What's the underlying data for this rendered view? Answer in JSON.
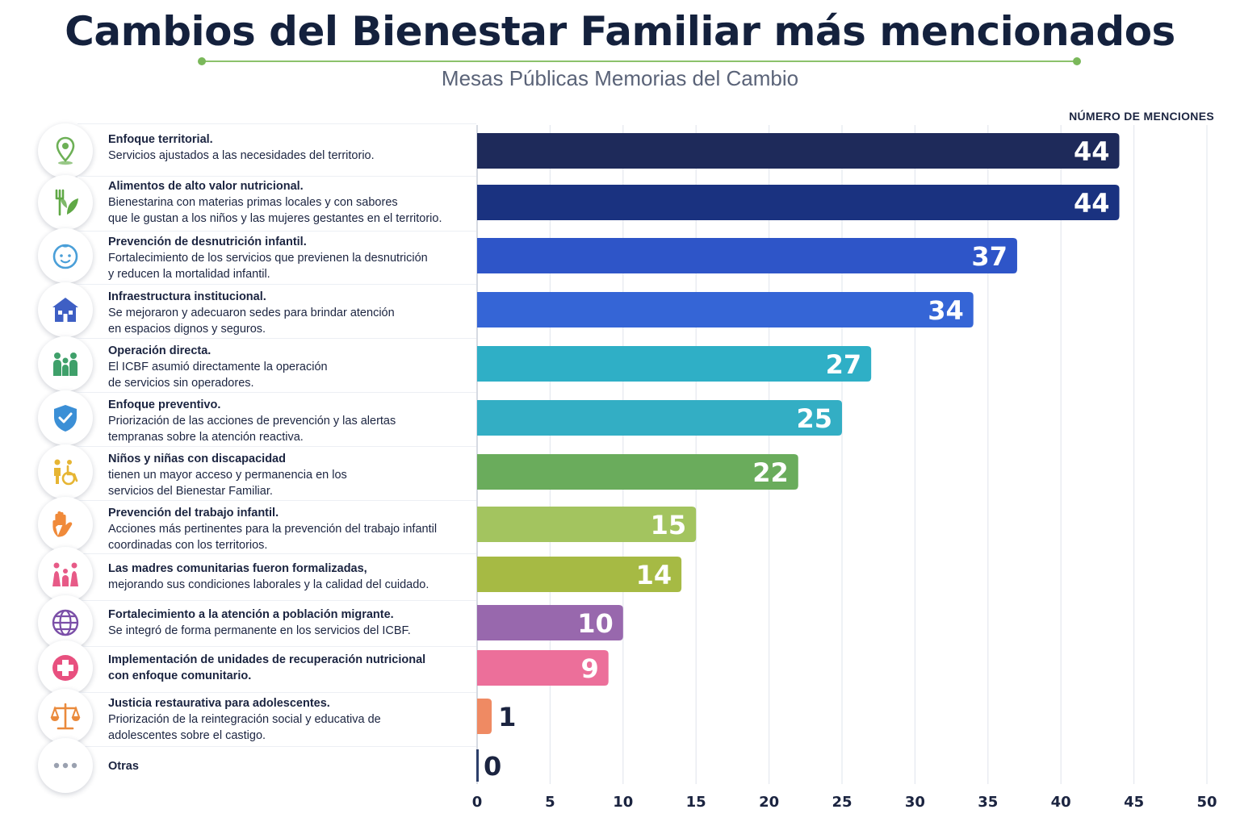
{
  "header": {
    "title": "Cambios del Bienestar Familiar más mencionados",
    "subtitle": "Mesas Públicas Memorias del Cambio"
  },
  "colors": {
    "title": "#14213d",
    "accent_rule": "#8cc26b"
  },
  "chart_data": {
    "type": "bar",
    "orientation": "horizontal",
    "title": "Cambios del Bienestar Familiar más mencionados",
    "subtitle": "Mesas Públicas Memorias del Cambio",
    "xlabel": "NÚMERO DE MENCIONES",
    "xlim": [
      0,
      50
    ],
    "xticks": [
      0,
      5,
      10,
      15,
      20,
      25,
      30,
      35,
      40,
      45,
      50
    ],
    "grid": true,
    "legend": "none",
    "categories": [
      "Enfoque territorial.",
      "Alimentos de alto valor nutricional.",
      "Prevención de desnutrición infantil.",
      "Infraestructura institucional.",
      "Operación directa.",
      "Enfoque preventivo.",
      "Niños y niñas con discapacidad",
      "Prevención del trabajo infantil.",
      "Las madres comunitarias fueron formalizadas,",
      "Fortalecimiento a la atención a población migrante.",
      "Implementación de unidades de recuperación nutricional con enfoque comunitario.",
      "Justicia restaurativa para adolescentes.",
      "Otras"
    ],
    "values": [
      44,
      44,
      37,
      34,
      27,
      25,
      22,
      15,
      14,
      10,
      9,
      1,
      0
    ],
    "bar_colors": [
      "#1e2a5a",
      "#1a3280",
      "#2e55c8",
      "#3565d6",
      "#2fafc6",
      "#33aec4",
      "#6aac5c",
      "#a3c45f",
      "#a6ba44",
      "#9868ad",
      "#ec6f9a",
      "#ef8a63",
      "#2c3e6a"
    ]
  },
  "rows": [
    {
      "title": "Enfoque territorial.",
      "desc": "Servicios ajustados a las necesidades del territorio.",
      "icon": "location-pin-icon",
      "icon_color": "#6db056"
    },
    {
      "title": "Alimentos de alto valor nutricional.",
      "desc": "Bienestarina con materias primas locales y con sabores\nque le gustan a los niños y las mujeres gestantes en el territorio.",
      "icon": "fork-leaf-icon",
      "icon_color": "#5fa845"
    },
    {
      "title": "Prevención de desnutrición infantil.",
      "desc": "Fortalecimiento de los servicios que previenen la desnutrición\ny reducen la mortalidad infantil.",
      "icon": "baby-face-icon",
      "icon_color": "#4a9fd8"
    },
    {
      "title": "Infraestructura institucional.",
      "desc": "Se mejoraron y adecuaron sedes para brindar atención\nen espacios dignos y seguros.",
      "icon": "building-icon",
      "icon_color": "#3e5fc4"
    },
    {
      "title": "Operación directa.",
      "desc": "El ICBF asumió directamente la operación\nde servicios sin operadores.",
      "icon": "family-group-icon",
      "icon_color": "#3fa06a"
    },
    {
      "title": "Enfoque preventivo.",
      "desc": "Priorización de las acciones de prevención y las alertas\ntempranas sobre la atención reactiva.",
      "icon": "shield-check-icon",
      "icon_color": "#3b8fd6"
    },
    {
      "title": "Niños y niñas con discapacidad",
      "desc": "tienen un mayor acceso y permanencia en los\nservicios del Bienestar Familiar.",
      "icon": "child-wheelchair-icon",
      "icon_color": "#e6b533"
    },
    {
      "title": "Prevención del trabajo infantil.",
      "desc": "Acciones más pertinentes para la prevención del trabajo infantil\ncoordinadas con los territorios.",
      "icon": "hand-stop-icon",
      "icon_color": "#f08a3a"
    },
    {
      "title": "Las madres comunitarias fueron formalizadas,",
      "desc": "mejorando sus condiciones laborales y la calidad del cuidado.",
      "icon": "mothers-children-icon",
      "icon_color": "#e75a87"
    },
    {
      "title": "Fortalecimiento a la atención a población migrante.",
      "desc": "Se integró de forma permanente en los servicios del ICBF.",
      "icon": "globe-icon",
      "icon_color": "#7b4fa8"
    },
    {
      "title": "Implementación de unidades de recuperación nutricional\ncon enfoque comunitario.",
      "desc": "",
      "icon": "medical-cross-icon",
      "icon_color": "#e8507f"
    },
    {
      "title": "Justicia restaurativa para adolescentes.",
      "desc": "Priorización de la reintegración social y educativa de\nadolescentes sobre el castigo.",
      "icon": "scales-icon",
      "icon_color": "#ea8a3c"
    },
    {
      "title": "Otras",
      "desc": "",
      "icon": "more-dots-icon",
      "icon_color": "#9aa1b0"
    }
  ]
}
